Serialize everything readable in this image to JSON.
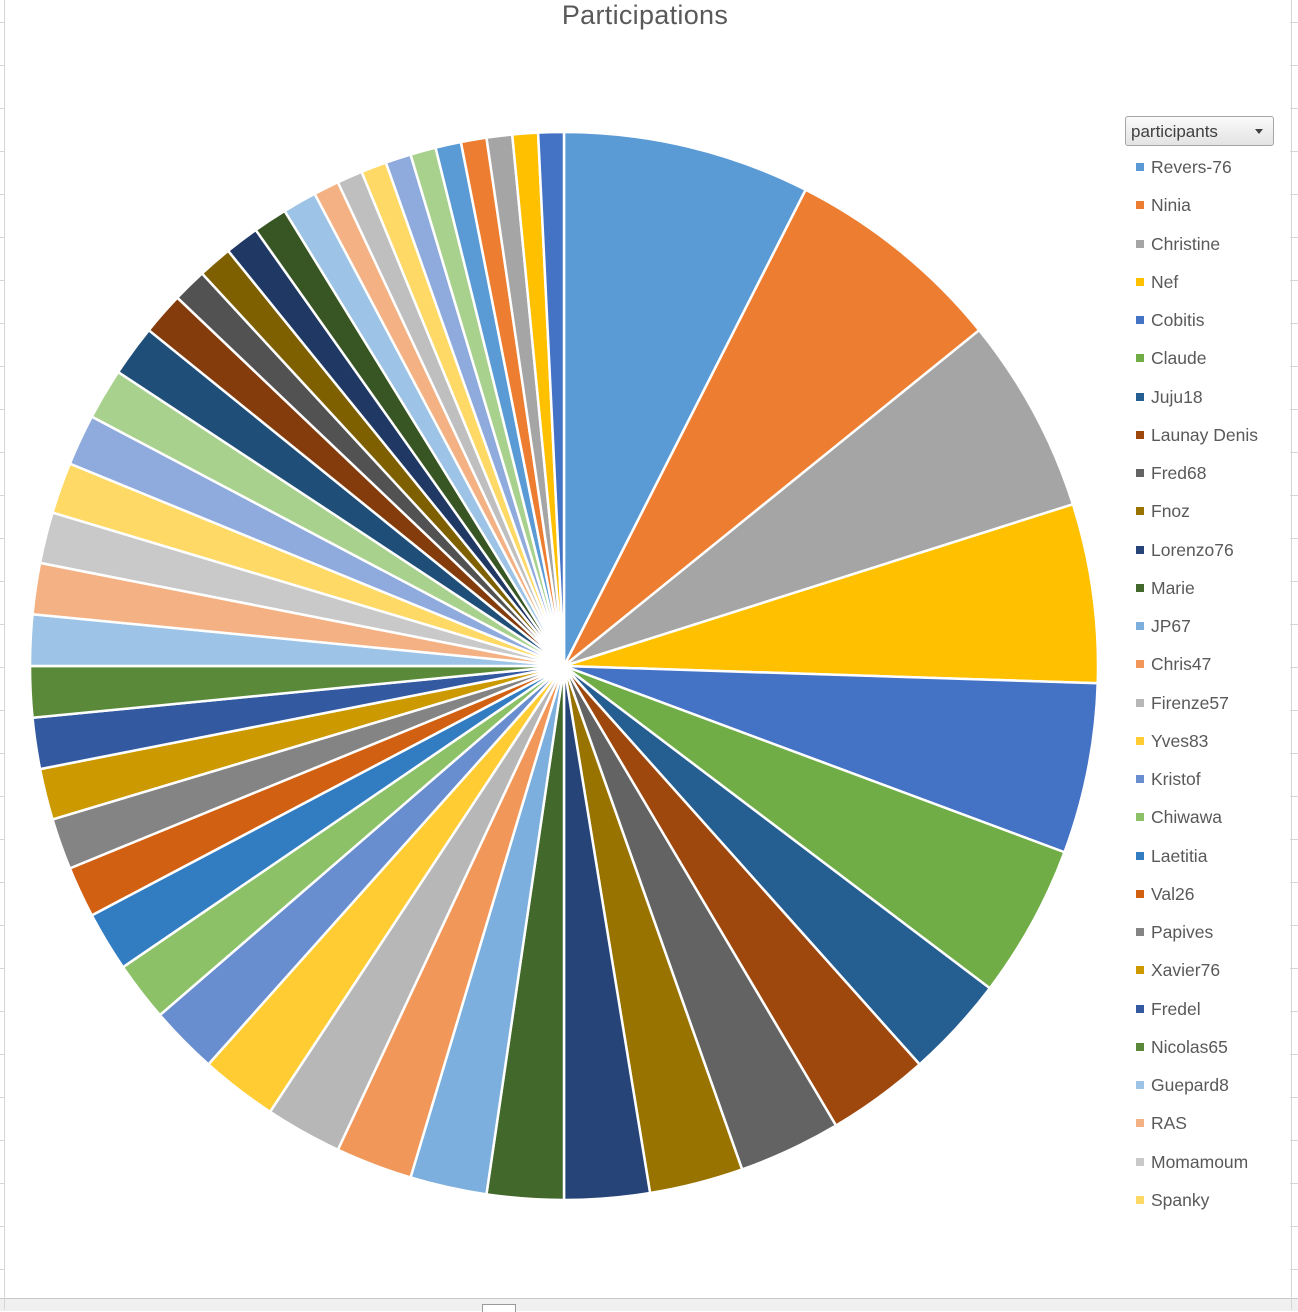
{
  "chart_data": {
    "type": "pie",
    "title": "Participations",
    "filter_field": "participants",
    "start_angle_deg": 0,
    "direction": "clockwise",
    "legend_position": "right",
    "categories": [
      "Revers-76",
      "Ninia",
      "Christine",
      "Nef",
      "Cobitis",
      "Claude",
      "Juju18",
      "Launay Denis",
      "Fred68",
      "Fnoz",
      "Lorenzo76",
      "Marie",
      "JP67",
      "Chris47",
      "Firenze57",
      "Yves83",
      "Kristof",
      "Chiwawa",
      "Laetitia",
      "Val26",
      "Papives",
      "Xavier76",
      "Fredel",
      "Nicolas65",
      "Guepard8",
      "RAS",
      "Momamoum",
      "Spanky",
      "",
      "",
      "",
      "",
      "",
      "",
      "",
      "",
      "",
      "",
      "",
      "",
      "",
      "",
      "",
      "",
      "",
      "",
      ""
    ],
    "values": [
      29,
      26,
      23,
      21,
      20,
      18,
      12,
      12,
      12,
      11,
      10,
      9,
      9,
      9,
      9,
      9,
      8,
      7,
      7,
      6,
      6,
      6,
      6,
      6,
      6,
      6,
      6,
      6,
      6,
      6,
      6,
      5,
      4,
      4,
      4,
      4,
      4,
      3,
      3,
      3,
      3,
      3,
      3,
      3,
      3,
      3,
      3
    ],
    "colors": [
      "#5B9BD5",
      "#ED7D31",
      "#A5A5A5",
      "#FFC000",
      "#4472C4",
      "#70AD47",
      "#255E91",
      "#9E480E",
      "#636363",
      "#997300",
      "#264478",
      "#43682B",
      "#7CAFDD",
      "#F1975A",
      "#B7B7B7",
      "#FFCD33",
      "#698ED0",
      "#8CC168",
      "#327DC2",
      "#D26012",
      "#848484",
      "#CC9A00",
      "#335AA1",
      "#5A8A39",
      "#9DC3E6",
      "#F4B183",
      "#C9C9C9",
      "#FFD966",
      "#8FAADC",
      "#A9D18E",
      "#1F4E79",
      "#843C0C",
      "#525252",
      "#7F6000",
      "#203864",
      "#375623",
      "#9DC3E6",
      "#F4B183",
      "#BFBFBF",
      "#FFD966",
      "#8FAADC",
      "#A9D18E",
      "#5B9BD5",
      "#ED7D31",
      "#A5A5A5",
      "#FFC000",
      "#4472C4"
    ]
  },
  "legend": [
    {
      "label": "Revers-76",
      "color": "#5B9BD5"
    },
    {
      "label": "Ninia",
      "color": "#ED7D31"
    },
    {
      "label": "Christine",
      "color": "#A5A5A5"
    },
    {
      "label": "Nef",
      "color": "#FFC000"
    },
    {
      "label": "Cobitis",
      "color": "#4472C4"
    },
    {
      "label": "Claude",
      "color": "#70AD47"
    },
    {
      "label": "Juju18",
      "color": "#255E91"
    },
    {
      "label": "Launay Denis",
      "color": "#9E480E"
    },
    {
      "label": "Fred68",
      "color": "#636363"
    },
    {
      "label": "Fnoz",
      "color": "#997300"
    },
    {
      "label": "Lorenzo76",
      "color": "#264478"
    },
    {
      "label": "Marie",
      "color": "#43682B"
    },
    {
      "label": "JP67",
      "color": "#7CAFDD"
    },
    {
      "label": "Chris47",
      "color": "#F1975A"
    },
    {
      "label": "Firenze57",
      "color": "#B7B7B7"
    },
    {
      "label": "Yves83",
      "color": "#FFCD33"
    },
    {
      "label": "Kristof",
      "color": "#698ED0"
    },
    {
      "label": "Chiwawa",
      "color": "#8CC168"
    },
    {
      "label": "Laetitia",
      "color": "#327DC2"
    },
    {
      "label": "Val26",
      "color": "#D26012"
    },
    {
      "label": "Papives",
      "color": "#848484"
    },
    {
      "label": "Xavier76",
      "color": "#CC9A00"
    },
    {
      "label": "Fredel",
      "color": "#335AA1"
    },
    {
      "label": "Nicolas65",
      "color": "#5A8A39"
    },
    {
      "label": "Guepard8",
      "color": "#9DC3E6"
    },
    {
      "label": "RAS",
      "color": "#F4B183"
    },
    {
      "label": "Momamoum",
      "color": "#C9C9C9"
    },
    {
      "label": "Spanky",
      "color": "#FFD966"
    }
  ]
}
